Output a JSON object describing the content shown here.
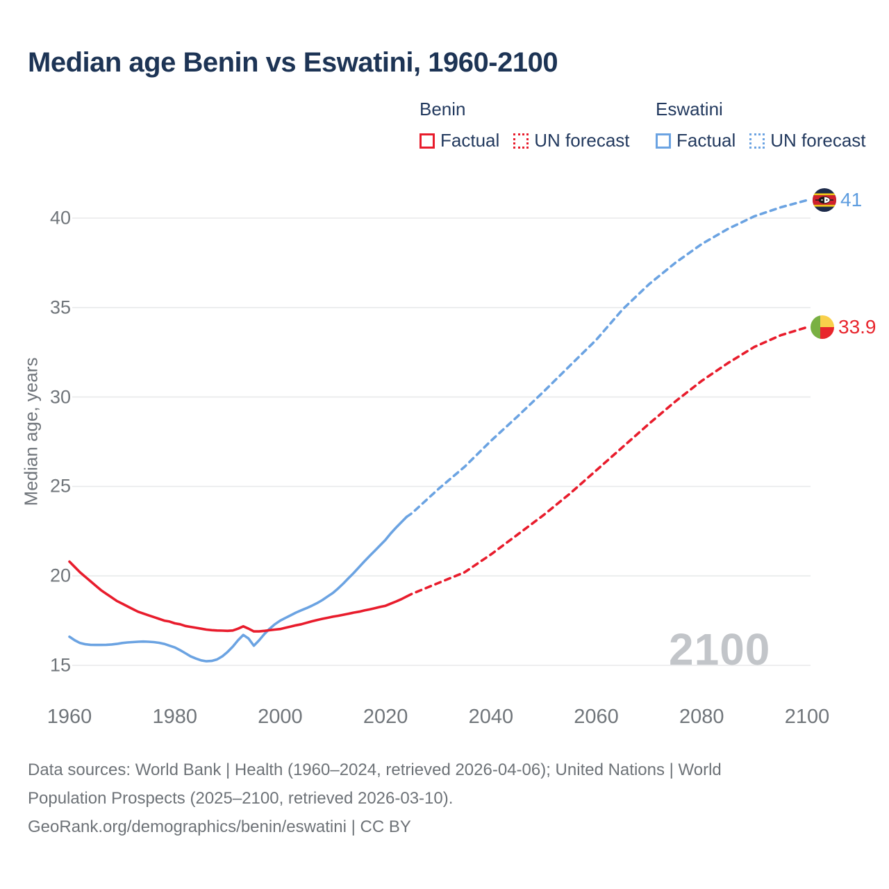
{
  "title": "Median age Benin vs Eswatini, 1960-2100",
  "legend": {
    "groups": [
      {
        "name": "Benin",
        "color": "#e81c2c",
        "items": [
          {
            "label": "Factual",
            "style": "solid"
          },
          {
            "label": "UN forecast",
            "style": "dashed"
          }
        ]
      },
      {
        "name": "Eswatini",
        "color": "#6ba3e2",
        "items": [
          {
            "label": "Factual",
            "style": "solid"
          },
          {
            "label": "UN forecast",
            "style": "dashed"
          }
        ]
      }
    ]
  },
  "end_labels": [
    {
      "country": "Eswatini",
      "value": "41",
      "color": "#5d9cdf",
      "flag": "eswatini-flag"
    },
    {
      "country": "Benin",
      "value": "33.9",
      "color": "#e8242c",
      "flag": "benin-flag"
    }
  ],
  "watermark": "2100",
  "footer": {
    "line1": "Data sources: World Bank | Health (1960–2024, retrieved 2026-04-06); United Nations | World",
    "line2": "Population Prospects (2025–2100, retrieved 2026-03-10).",
    "line3": "GeoRank.org/demographics/benin/eswatini | CC BY"
  },
  "chart_data": {
    "type": "line",
    "title": "Median age Benin vs Eswatini, 1960-2100",
    "xlabel": "",
    "ylabel": "Median age, years",
    "x_ticks": [
      1960,
      1980,
      2000,
      2020,
      2040,
      2060,
      2080,
      2100
    ],
    "y_ticks": [
      15,
      20,
      25,
      30,
      35,
      40
    ],
    "xlim": [
      1958,
      2101
    ],
    "ylim": [
      14,
      42
    ],
    "grid": "horizontal",
    "legend_position": "top-right",
    "colors": {
      "gridline": "#e8e9ea",
      "tick_text": "#70757a",
      "watermark": "#c2c5c9"
    },
    "series": [
      {
        "name": "Eswatini Factual",
        "color": "#6ba3e2",
        "style": "solid",
        "x_start": 1960,
        "x_step": 1,
        "values": [
          16.6,
          16.4,
          16.25,
          16.18,
          16.15,
          16.14,
          16.14,
          16.15,
          16.17,
          16.2,
          16.25,
          16.28,
          16.3,
          16.32,
          16.33,
          16.32,
          16.3,
          16.26,
          16.2,
          16.1,
          16.0,
          15.85,
          15.68,
          15.5,
          15.38,
          15.28,
          15.23,
          15.25,
          15.33,
          15.5,
          15.75,
          16.05,
          16.4,
          16.7,
          16.5,
          16.1,
          16.4,
          16.75,
          17.05,
          17.3,
          17.5,
          17.65,
          17.8,
          17.95,
          18.08,
          18.2,
          18.33,
          18.48,
          18.65,
          18.85,
          19.05,
          19.3,
          19.58,
          19.88,
          20.18,
          20.5,
          20.82,
          21.12,
          21.42,
          21.72,
          22.02,
          22.38,
          22.7,
          23.0,
          23.3
        ]
      },
      {
        "name": "Eswatini UN forecast",
        "color": "#6ba3e2",
        "style": "dashed",
        "x": [
          2024,
          2025,
          2030,
          2035,
          2040,
          2045,
          2050,
          2055,
          2060,
          2065,
          2070,
          2075,
          2080,
          2085,
          2090,
          2095,
          2100
        ],
        "values": [
          23.3,
          23.5,
          24.85,
          26.1,
          27.55,
          28.9,
          30.3,
          31.75,
          33.2,
          34.9,
          36.3,
          37.5,
          38.55,
          39.4,
          40.1,
          40.6,
          41.0
        ]
      },
      {
        "name": "Benin Factual",
        "color": "#e81c2c",
        "style": "solid",
        "x_start": 1960,
        "x_step": 1,
        "values": [
          20.8,
          20.5,
          20.2,
          19.95,
          19.7,
          19.45,
          19.2,
          19.0,
          18.8,
          18.6,
          18.45,
          18.3,
          18.15,
          18.0,
          17.9,
          17.8,
          17.7,
          17.6,
          17.5,
          17.45,
          17.35,
          17.3,
          17.2,
          17.15,
          17.1,
          17.05,
          17.0,
          16.97,
          16.95,
          16.94,
          16.93,
          16.95,
          17.05,
          17.18,
          17.05,
          16.9,
          16.9,
          16.93,
          16.97,
          17.0,
          17.03,
          17.1,
          17.17,
          17.24,
          17.3,
          17.38,
          17.46,
          17.53,
          17.6,
          17.66,
          17.72,
          17.77,
          17.83,
          17.89,
          17.95,
          18.0,
          18.07,
          18.13,
          18.2,
          18.27,
          18.33,
          18.45,
          18.57,
          18.7,
          18.85
        ]
      },
      {
        "name": "Benin UN forecast",
        "color": "#e81c2c",
        "style": "dashed",
        "x": [
          2024,
          2025,
          2030,
          2035,
          2040,
          2045,
          2050,
          2055,
          2060,
          2065,
          2070,
          2075,
          2080,
          2085,
          2090,
          2095,
          2100
        ],
        "values": [
          18.85,
          19.0,
          19.6,
          20.2,
          21.2,
          22.3,
          23.4,
          24.6,
          25.9,
          27.2,
          28.5,
          29.75,
          30.9,
          31.9,
          32.8,
          33.45,
          33.9
        ]
      }
    ]
  }
}
